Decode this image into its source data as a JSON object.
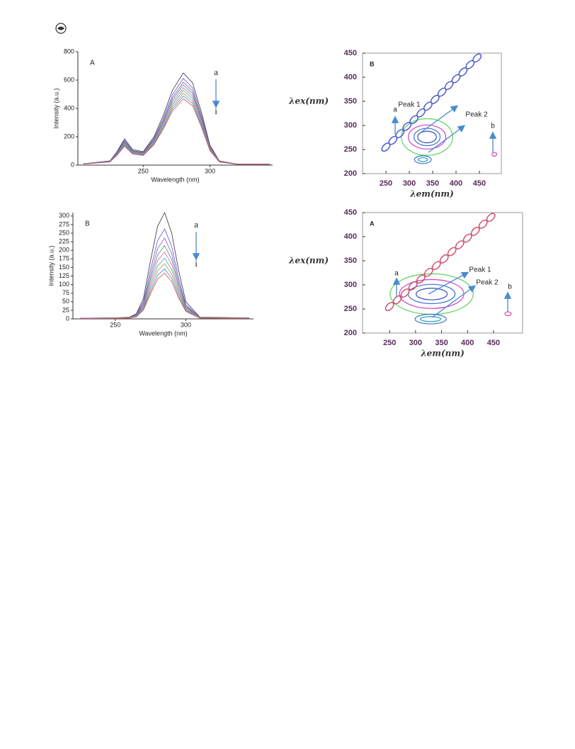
{
  "chart_data": [
    {
      "type": "line",
      "label": "A",
      "xlabel": "Wavelength (nm)",
      "ylabel": "Intensity (a.u.)",
      "xlim": [
        201,
        347
      ],
      "ylim": [
        0,
        800
      ],
      "xticks": [
        250,
        300
      ],
      "yticks": [
        0,
        200,
        400,
        600,
        800
      ],
      "annotations": [
        "a",
        "i"
      ],
      "x": [
        205,
        225,
        230,
        236,
        242,
        250,
        258,
        265,
        272,
        280,
        287,
        294,
        300,
        307,
        320,
        345
      ],
      "series": [
        {
          "color": "#333333",
          "values": [
            10,
            30,
            90,
            185,
            110,
            95,
            200,
            350,
            530,
            650,
            580,
            360,
            140,
            30,
            8,
            8
          ]
        },
        {
          "color": "#5b5bd6",
          "values": [
            9,
            28,
            85,
            174,
            103,
            89,
            188,
            329,
            498,
            611,
            545,
            338,
            132,
            28,
            8,
            8
          ]
        },
        {
          "color": "#9a4fd0",
          "values": [
            9,
            27,
            81,
            167,
            99,
            86,
            180,
            315,
            477,
            585,
            522,
            324,
            126,
            27,
            7,
            7
          ]
        },
        {
          "color": "#3a9a5a",
          "values": [
            9,
            26,
            78,
            161,
            96,
            83,
            174,
            305,
            461,
            566,
            505,
            313,
            122,
            26,
            7,
            7
          ]
        },
        {
          "color": "#e060b0",
          "values": [
            8,
            25,
            76,
            155,
            92,
            80,
            168,
            294,
            445,
            546,
            487,
            302,
            118,
            25,
            7,
            7
          ]
        },
        {
          "color": "#30b0b0",
          "values": [
            8,
            24,
            73,
            150,
            89,
            77,
            162,
            284,
            429,
            527,
            470,
            292,
            113,
            24,
            6,
            6
          ]
        },
        {
          "color": "#c09030",
          "values": [
            8,
            23,
            70,
            144,
            86,
            74,
            156,
            273,
            413,
            507,
            452,
            281,
            109,
            23,
            6,
            6
          ]
        },
        {
          "color": "#4080e0",
          "values": [
            8,
            23,
            68,
            139,
            83,
            71,
            150,
            263,
            398,
            488,
            435,
            270,
            105,
            23,
            6,
            6
          ]
        },
        {
          "color": "#e05050",
          "values": [
            7,
            22,
            65,
            133,
            79,
            68,
            144,
            252,
            382,
            468,
            418,
            259,
            101,
            22,
            6,
            6
          ]
        }
      ]
    },
    {
      "type": "line",
      "label": "B",
      "xlabel": "Wavelength (nm)",
      "ylabel": "Intensity (a.u.)",
      "xlim": [
        220,
        348
      ],
      "ylim": [
        0,
        310
      ],
      "xticks": [
        250,
        300
      ],
      "yticks": [
        0,
        25,
        50,
        75,
        100,
        125,
        150,
        175,
        200,
        225,
        250,
        275,
        300
      ],
      "annotations": [
        "a",
        "i"
      ],
      "x": [
        225,
        250,
        260,
        265,
        270,
        275,
        280,
        285,
        290,
        295,
        300,
        310,
        345
      ],
      "series": [
        {
          "color": "#333333",
          "values": [
            2,
            3,
            5,
            15,
            60,
            170,
            270,
            310,
            250,
            140,
            50,
            5,
            3
          ]
        },
        {
          "color": "#5b5bd6",
          "values": [
            2,
            3,
            4,
            13,
            51,
            144,
            228,
            262,
            211,
            118,
            42,
            4,
            3
          ]
        },
        {
          "color": "#9a4fd0",
          "values": [
            2,
            2,
            4,
            11,
            46,
            129,
            205,
            236,
            190,
            106,
            38,
            4,
            2
          ]
        },
        {
          "color": "#3a9a5a",
          "values": [
            1,
            2,
            3,
            10,
            41,
            117,
            186,
            214,
            173,
            97,
            35,
            3,
            2
          ]
        },
        {
          "color": "#e060b0",
          "values": [
            1,
            2,
            3,
            9,
            38,
            107,
            170,
            195,
            158,
            88,
            32,
            3,
            2
          ]
        },
        {
          "color": "#30b0b0",
          "values": [
            1,
            2,
            3,
            9,
            34,
            97,
            154,
            177,
            143,
            80,
            29,
            3,
            2
          ]
        },
        {
          "color": "#c09030",
          "values": [
            1,
            2,
            3,
            8,
            31,
            88,
            140,
            161,
            130,
            73,
            26,
            3,
            2
          ]
        },
        {
          "color": "#4080e0",
          "values": [
            1,
            1,
            2,
            7,
            28,
            80,
            127,
            146,
            118,
            66,
            24,
            2,
            1
          ]
        },
        {
          "color": "#e05050",
          "values": [
            1,
            1,
            2,
            6,
            26,
            73,
            116,
            133,
            108,
            60,
            22,
            2,
            1
          ]
        }
      ]
    },
    {
      "type": "contour",
      "label": "B",
      "xlabel": "λem(nm)",
      "ylabel": "λex(nm)",
      "xlim": [
        200,
        497
      ],
      "ylim": [
        200,
        450
      ],
      "xticks": [
        250,
        300,
        350,
        400,
        450
      ],
      "yticks": [
        200,
        250,
        300,
        350,
        400,
        450
      ],
      "annotations": [
        "a",
        "b",
        "Peak 1",
        "Peak 2"
      ],
      "scatter_band": {
        "color": "#4a5ad0",
        "x": [
          250,
          265,
          280,
          295,
          310,
          325,
          340,
          355,
          370,
          385,
          400,
          415,
          430,
          445
        ],
        "y": [
          255,
          269,
          283,
          298,
          312,
          326,
          340,
          354,
          369,
          383,
          397,
          411,
          426,
          440
        ]
      },
      "contours": [
        {
          "color": "#60d060",
          "cx": 338,
          "cy": 276,
          "rx": 55,
          "ry": 38
        },
        {
          "color": "#d040c0",
          "cx": 338,
          "cy": 276,
          "rx": 40,
          "ry": 25
        },
        {
          "color": "#4070d0",
          "cx": 338,
          "cy": 276,
          "rx": 28,
          "ry": 18
        },
        {
          "color": "#3050c0",
          "cx": 338,
          "cy": 276,
          "rx": 20,
          "ry": 12
        },
        {
          "color": "#4070d0",
          "cx": 329,
          "cy": 229,
          "rx": 18,
          "ry": 8
        },
        {
          "color": "#20a0b0",
          "cx": 329,
          "cy": 229,
          "rx": 10,
          "ry": 4
        },
        {
          "color": "#d040c0",
          "cx": 482,
          "cy": 240,
          "rx": 5,
          "ry": 4
        }
      ]
    },
    {
      "type": "contour",
      "label": "A",
      "xlabel": "λem(nm)",
      "ylabel": "λex(nm)",
      "xlim": [
        198,
        506
      ],
      "ylim": [
        200,
        450
      ],
      "xticks": [
        250,
        300,
        350,
        400,
        450
      ],
      "yticks": [
        200,
        250,
        300,
        350,
        400,
        450
      ],
      "annotations": [
        "a",
        "b",
        "Peak 1",
        "Peak 2"
      ],
      "scatter_band": {
        "color": "#d05070",
        "x": [
          250,
          265,
          280,
          295,
          310,
          325,
          340,
          355,
          370,
          385,
          400,
          415,
          430,
          445
        ],
        "y": [
          255,
          269,
          283,
          298,
          312,
          326,
          340,
          354,
          369,
          383,
          397,
          411,
          426,
          440
        ]
      },
      "contours": [
        {
          "color": "#60d060",
          "cx": 331,
          "cy": 281,
          "rx": 80,
          "ry": 42
        },
        {
          "color": "#d040c0",
          "cx": 331,
          "cy": 281,
          "rx": 62,
          "ry": 30
        },
        {
          "color": "#4070d0",
          "cx": 331,
          "cy": 281,
          "rx": 45,
          "ry": 20
        },
        {
          "color": "#3050c0",
          "cx": 331,
          "cy": 281,
          "rx": 30,
          "ry": 12
        },
        {
          "color": "#4070d0",
          "cx": 329,
          "cy": 229,
          "rx": 30,
          "ry": 10
        },
        {
          "color": "#20a0b0",
          "cx": 329,
          "cy": 229,
          "rx": 20,
          "ry": 5
        },
        {
          "color": "#d040c0",
          "cx": 478,
          "cy": 240,
          "rx": 6,
          "ry": 4
        }
      ]
    }
  ]
}
